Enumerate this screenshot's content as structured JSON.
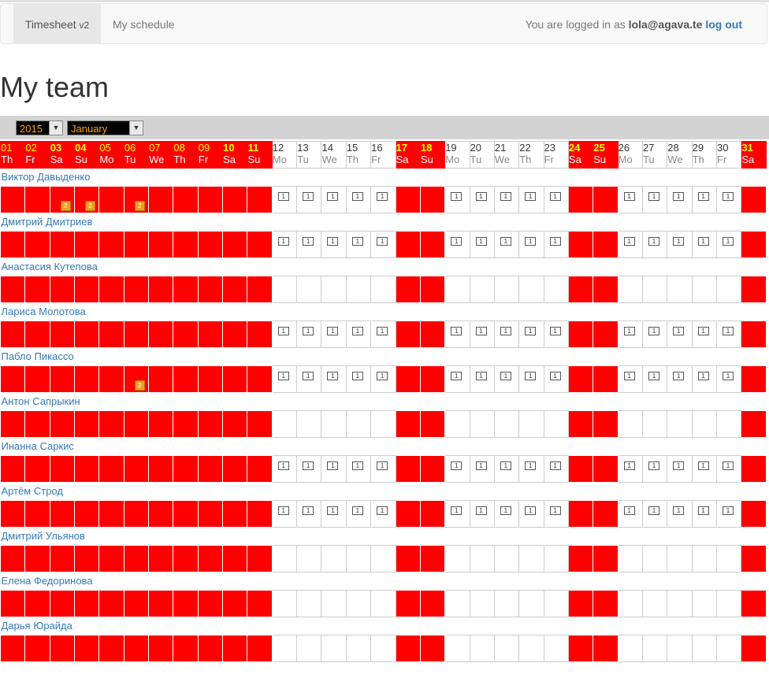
{
  "nav": {
    "brand": "Timesheet",
    "brand_version": "v2",
    "link": "My schedule",
    "user_prefix": "You are logged in as",
    "user_email": "lola@agava.te",
    "logout": "log out"
  },
  "page_title": "My team",
  "filters": {
    "year": "2015",
    "month": "January"
  },
  "days": [
    {
      "d": "01",
      "n": "Th",
      "off": true,
      "b": false
    },
    {
      "d": "02",
      "n": "Fr",
      "off": true,
      "b": false
    },
    {
      "d": "03",
      "n": "Sa",
      "off": true,
      "b": true
    },
    {
      "d": "04",
      "n": "Su",
      "off": true,
      "b": true
    },
    {
      "d": "05",
      "n": "Mo",
      "off": true,
      "b": false
    },
    {
      "d": "06",
      "n": "Tu",
      "off": true,
      "b": false
    },
    {
      "d": "07",
      "n": "We",
      "off": true,
      "b": false
    },
    {
      "d": "08",
      "n": "Th",
      "off": true,
      "b": false
    },
    {
      "d": "09",
      "n": "Fr",
      "off": true,
      "b": false
    },
    {
      "d": "10",
      "n": "Sa",
      "off": true,
      "b": true
    },
    {
      "d": "11",
      "n": "Su",
      "off": true,
      "b": true
    },
    {
      "d": "12",
      "n": "Mo",
      "off": false,
      "b": false
    },
    {
      "d": "13",
      "n": "Tu",
      "off": false,
      "b": false
    },
    {
      "d": "14",
      "n": "We",
      "off": false,
      "b": false
    },
    {
      "d": "15",
      "n": "Th",
      "off": false,
      "b": false
    },
    {
      "d": "16",
      "n": "Fr",
      "off": false,
      "b": false
    },
    {
      "d": "17",
      "n": "Sa",
      "off": true,
      "b": true
    },
    {
      "d": "18",
      "n": "Su",
      "off": true,
      "b": true
    },
    {
      "d": "19",
      "n": "Mo",
      "off": false,
      "b": false
    },
    {
      "d": "20",
      "n": "Tu",
      "off": false,
      "b": false
    },
    {
      "d": "21",
      "n": "We",
      "off": false,
      "b": false
    },
    {
      "d": "22",
      "n": "Th",
      "off": false,
      "b": false
    },
    {
      "d": "23",
      "n": "Fr",
      "off": false,
      "b": false
    },
    {
      "d": "24",
      "n": "Sa",
      "off": true,
      "b": true
    },
    {
      "d": "25",
      "n": "Su",
      "off": true,
      "b": true
    },
    {
      "d": "26",
      "n": "Mo",
      "off": false,
      "b": false
    },
    {
      "d": "27",
      "n": "Tu",
      "off": false,
      "b": false
    },
    {
      "d": "28",
      "n": "We",
      "off": false,
      "b": false
    },
    {
      "d": "29",
      "n": "Th",
      "off": false,
      "b": false
    },
    {
      "d": "30",
      "n": "Fr",
      "off": false,
      "b": false
    },
    {
      "d": "31",
      "n": "Sa",
      "off": true,
      "b": true
    }
  ],
  "members": [
    {
      "name": "Виктор Давыденко",
      "ones": true,
      "twos": [
        2,
        3,
        5
      ]
    },
    {
      "name": "Дмитрий Дмитриев",
      "ones": true,
      "twos": []
    },
    {
      "name": "Анастасия Кутепова",
      "ones": false,
      "twos": []
    },
    {
      "name": "Лариса Молотова",
      "ones": true,
      "twos": []
    },
    {
      "name": "Пабло Пикассо",
      "ones": true,
      "twos": [
        5
      ]
    },
    {
      "name": "Антон Сапрыкин",
      "ones": false,
      "twos": []
    },
    {
      "name": "Инанна Саркис",
      "ones": true,
      "twos": []
    },
    {
      "name": "Артём Строд",
      "ones": true,
      "twos": []
    },
    {
      "name": "Дмитрий Ульянов",
      "ones": false,
      "twos": []
    },
    {
      "name": "Елена Федоринова",
      "ones": false,
      "twos": []
    },
    {
      "name": "Дарья Юрайда",
      "ones": false,
      "twos": []
    }
  ],
  "badges": {
    "one": "1",
    "two": "2"
  },
  "colors": {
    "off_day": "#ff0000",
    "off_day_number": "#ffff00",
    "link": "#337ab7",
    "badge_two": "#f0a020"
  }
}
